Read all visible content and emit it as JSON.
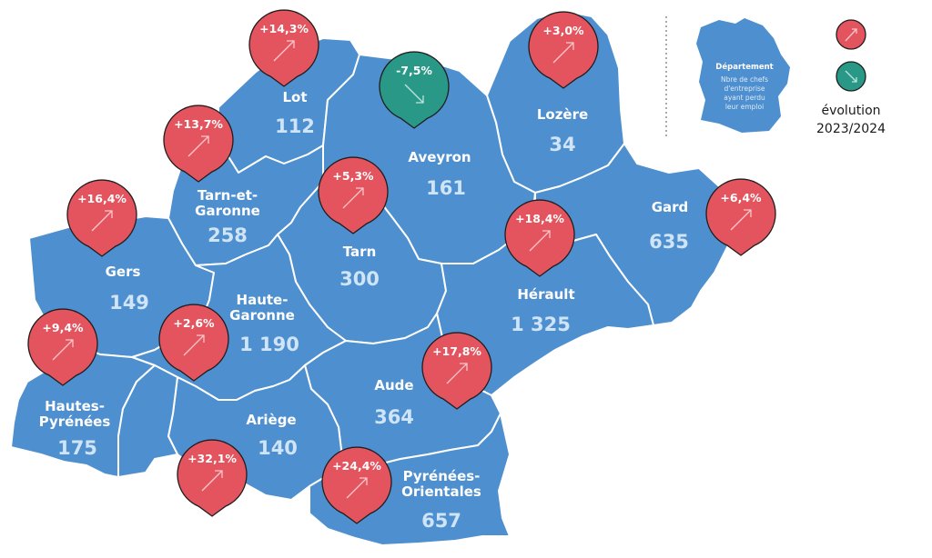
{
  "departements": [
    {
      "id": "lot",
      "name_lines": [
        "Lot"
      ],
      "value": "112",
      "evolution": "+14,3%",
      "trend": "up"
    },
    {
      "id": "lozere",
      "name_lines": [
        "Lozère"
      ],
      "value": "34",
      "evolution": "+3,0%",
      "trend": "up"
    },
    {
      "id": "aveyron",
      "name_lines": [
        "Aveyron"
      ],
      "value": "161",
      "evolution": "-7,5%",
      "trend": "down"
    },
    {
      "id": "tarn-et-garonne",
      "name_lines": [
        "Tarn-et-",
        "Garonne"
      ],
      "value": "258",
      "evolution": "+13,7%",
      "trend": "up"
    },
    {
      "id": "gard",
      "name_lines": [
        "Gard"
      ],
      "value": "635",
      "evolution": "+6,4%",
      "trend": "up"
    },
    {
      "id": "tarn",
      "name_lines": [
        "Tarn"
      ],
      "value": "300",
      "evolution": "+5,3%",
      "trend": "up"
    },
    {
      "id": "gers",
      "name_lines": [
        "Gers"
      ],
      "value": "149",
      "evolution": "+16,4%",
      "trend": "up"
    },
    {
      "id": "herault",
      "name_lines": [
        "Hérault"
      ],
      "value": "1 325",
      "evolution": "+18,4%",
      "trend": "up"
    },
    {
      "id": "haute-garonne",
      "name_lines": [
        "Haute-",
        "Garonne"
      ],
      "value": "1 190",
      "evolution": "+2,6%",
      "trend": "up"
    },
    {
      "id": "hautes-pyrenees",
      "name_lines": [
        "Hautes-",
        "Pyrénées"
      ],
      "value": "175",
      "evolution": "+9,4%",
      "trend": "up"
    },
    {
      "id": "aude",
      "name_lines": [
        "Aude"
      ],
      "value": "364",
      "evolution": "+17,8%",
      "trend": "up"
    },
    {
      "id": "ariege",
      "name_lines": [
        "Ariège"
      ],
      "value": "140",
      "evolution": "+32,1%",
      "trend": "up"
    },
    {
      "id": "pyrenees-orientales",
      "name_lines": [
        "Pyrénées-",
        "Orientales"
      ],
      "value": "657",
      "evolution": "+24,4%",
      "trend": "up"
    }
  ],
  "legend": {
    "title": "Département",
    "description_lines": [
      "Nbre de chefs",
      "d'entreprise",
      "ayant perdu",
      "leur emploi"
    ],
    "evolution_lines": [
      "évolution",
      "2023/2024"
    ]
  },
  "colors": {
    "map_fill": "#4e8fcf",
    "increase_pin": "#e4545e",
    "decrease_pin": "#2a9886"
  }
}
